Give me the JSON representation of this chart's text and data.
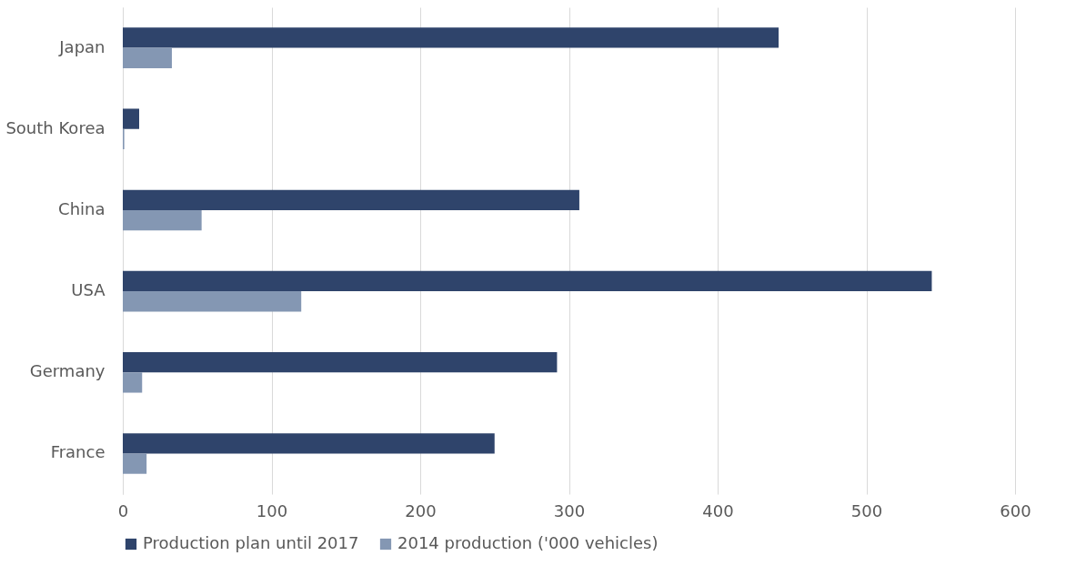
{
  "chart_data": {
    "type": "bar",
    "orientation": "horizontal",
    "categories": [
      "Japan",
      "South Korea",
      "China",
      "USA",
      "Germany",
      "France"
    ],
    "series": [
      {
        "name": "Production plan until 2017",
        "color": "#2f446b",
        "values": [
          441,
          11,
          307,
          544,
          292,
          250
        ]
      },
      {
        "name": "2014 production ('000 vehicles)",
        "color": "#8497b3",
        "values": [
          33,
          1,
          53,
          120,
          13,
          16
        ]
      }
    ],
    "xlim": [
      0,
      600
    ],
    "xticks": [
      0,
      100,
      200,
      300,
      400,
      500,
      600
    ],
    "grid": "x",
    "legend": "bottom"
  }
}
